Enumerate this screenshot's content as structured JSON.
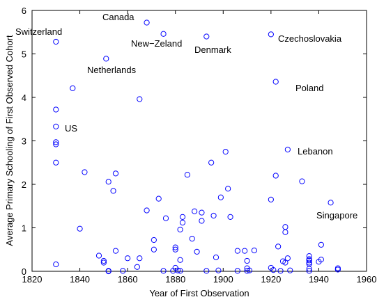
{
  "chart_data": {
    "type": "scatter",
    "xlabel": "Year of First Observation",
    "ylabel": "Average Primary Schooling of First Observed Cohort",
    "color": "#0000ff",
    "x": [
      1830,
      1868,
      1875,
      1893,
      1920,
      1851,
      1837,
      1865,
      1922,
      1830,
      1830,
      1830,
      1830,
      1830,
      1830,
      1842,
      1840,
      1852,
      1854,
      1855,
      1855,
      1848,
      1850,
      1850,
      1852,
      1852,
      1858,
      1860,
      1864,
      1865,
      1868,
      1871,
      1871,
      1873,
      1876,
      1875,
      1879,
      1880,
      1880,
      1880,
      1881,
      1882,
      1882,
      1882,
      1883,
      1883,
      1885,
      1887,
      1888,
      1889,
      1891,
      1891,
      1893,
      1895,
      1896,
      1897,
      1898,
      1899,
      1901,
      1902,
      1903,
      1906,
      1906,
      1909,
      1910,
      1910,
      1910,
      1911,
      1913,
      1920,
      1920,
      1921,
      1922,
      1923,
      1924,
      1925,
      1926,
      1926,
      1926,
      1927,
      1927,
      1928,
      1933,
      1936,
      1936,
      1936,
      1936,
      1936,
      1936,
      1936,
      1940,
      1941,
      1941,
      1945,
      1948,
      1948
    ],
    "values": [
      5.28,
      5.72,
      5.46,
      5.4,
      5.45,
      4.89,
      4.21,
      3.96,
      4.36,
      3.72,
      3.33,
      2.97,
      2.92,
      2.5,
      0.16,
      2.28,
      0.98,
      2.06,
      1.85,
      2.25,
      0.47,
      0.36,
      0.24,
      0.2,
      0.01,
      0,
      0.01,
      0.3,
      0.1,
      0.3,
      1.4,
      0.72,
      0.5,
      1.67,
      1.22,
      0.01,
      0.01,
      0.55,
      0.5,
      0.08,
      0.02,
      0.01,
      0.26,
      0.96,
      1.12,
      1.25,
      2.22,
      0.75,
      1.38,
      0.45,
      1.35,
      1.16,
      0.01,
      2.5,
      1.28,
      0.32,
      0.02,
      1.7,
      2.75,
      1.9,
      1.25,
      0.47,
      0.01,
      0.47,
      0.24,
      0.07,
      0.01,
      0.02,
      0.48,
      1.65,
      0.08,
      0.03,
      2.2,
      0.57,
      0.01,
      0.23,
      1.02,
      0.9,
      0.2,
      2.8,
      0.3,
      0.02,
      2.07,
      0.17,
      0.35,
      0.01,
      0.06,
      0.2,
      0.28,
      0.25,
      0.22,
      0.27,
      0.61,
      1.58,
      0.07,
      0.04
    ],
    "annotations": [
      "Switzerland",
      "Canada",
      "New−Zeland",
      "Denmark",
      "Czechoslovakia",
      "Netherlands",
      "US",
      "Poland",
      "Lebanon",
      "Singapore"
    ],
    "xlim": [
      1820,
      1960
    ],
    "xticks": [
      1820,
      1840,
      1860,
      1880,
      1900,
      1920,
      1940,
      1960
    ],
    "ylim": [
      0,
      6
    ],
    "yticks": [
      0,
      1,
      2,
      3,
      4,
      5,
      6
    ]
  }
}
